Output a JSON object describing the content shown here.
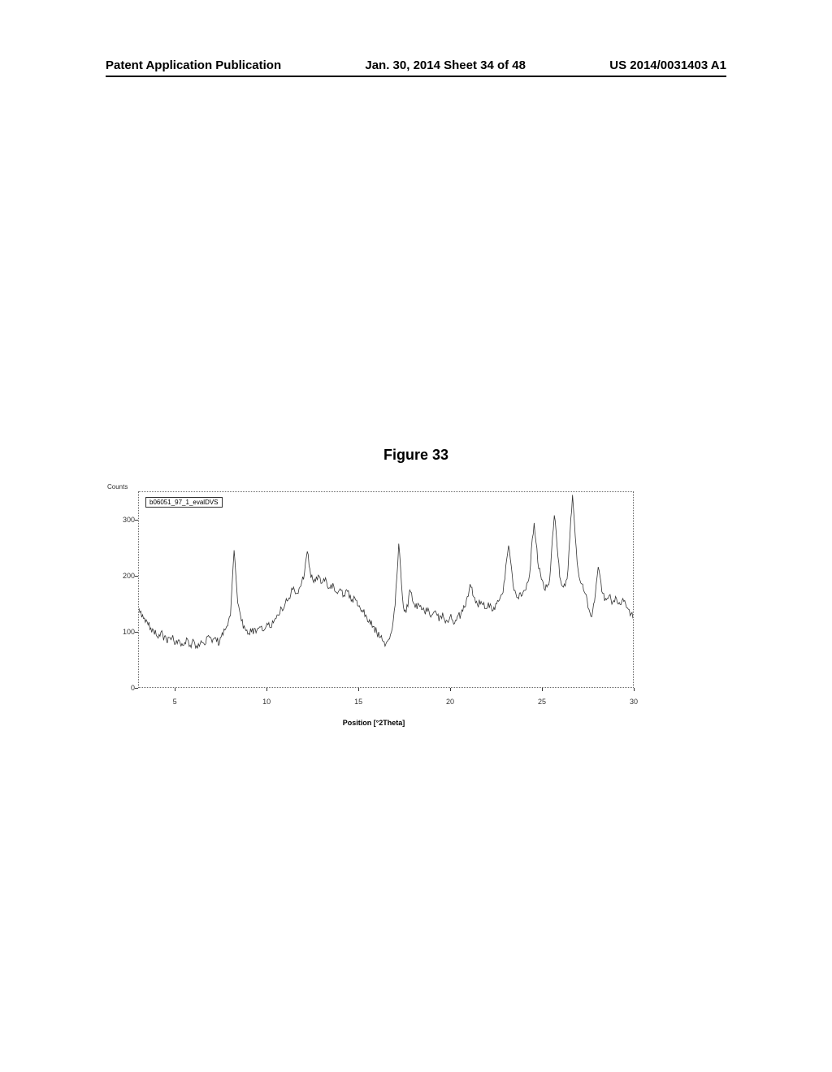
{
  "header": {
    "left": "Patent Application Publication",
    "center": "Jan. 30, 2014  Sheet 34 of 48",
    "right": "US 2014/0031403 A1"
  },
  "figure": {
    "title": "Figure 33",
    "legend": "b06051_97_1_evalDVS",
    "type": "line",
    "ylabel": "Counts",
    "xlabel": "Position [°2Theta]",
    "ylim": [
      0,
      350
    ],
    "xlim": [
      3,
      30
    ],
    "yticks": [
      0,
      100,
      200,
      300
    ],
    "xticks": [
      5,
      10,
      15,
      20,
      25,
      30
    ],
    "trace_color": "#333333",
    "line_width": 0.8,
    "background_color": "#ffffff",
    "border_style": "dotted",
    "data": [
      [
        3.0,
        140
      ],
      [
        3.2,
        128
      ],
      [
        3.5,
        112
      ],
      [
        3.8,
        100
      ],
      [
        4.0,
        92
      ],
      [
        4.2,
        98
      ],
      [
        4.5,
        84
      ],
      [
        4.8,
        90
      ],
      [
        5.0,
        78
      ],
      [
        5.2,
        85
      ],
      [
        5.4,
        74
      ],
      [
        5.6,
        88
      ],
      [
        5.8,
        76
      ],
      [
        6.0,
        82
      ],
      [
        6.2,
        70
      ],
      [
        6.4,
        84
      ],
      [
        6.6,
        76
      ],
      [
        6.8,
        92
      ],
      [
        7.0,
        80
      ],
      [
        7.2,
        88
      ],
      [
        7.4,
        78
      ],
      [
        7.6,
        95
      ],
      [
        7.8,
        108
      ],
      [
        8.0,
        130
      ],
      [
        8.1,
        190
      ],
      [
        8.2,
        245
      ],
      [
        8.3,
        200
      ],
      [
        8.4,
        150
      ],
      [
        8.6,
        118
      ],
      [
        8.8,
        105
      ],
      [
        9.0,
        98
      ],
      [
        9.2,
        104
      ],
      [
        9.4,
        96
      ],
      [
        9.6,
        110
      ],
      [
        9.8,
        102
      ],
      [
        10.0,
        115
      ],
      [
        10.2,
        108
      ],
      [
        10.4,
        120
      ],
      [
        10.6,
        128
      ],
      [
        10.8,
        140
      ],
      [
        11.0,
        150
      ],
      [
        11.2,
        162
      ],
      [
        11.4,
        175
      ],
      [
        11.6,
        168
      ],
      [
        11.8,
        180
      ],
      [
        12.0,
        195
      ],
      [
        12.1,
        225
      ],
      [
        12.2,
        245
      ],
      [
        12.3,
        218
      ],
      [
        12.4,
        198
      ],
      [
        12.6,
        192
      ],
      [
        12.8,
        200
      ],
      [
        13.0,
        188
      ],
      [
        13.2,
        195
      ],
      [
        13.4,
        178
      ],
      [
        13.6,
        185
      ],
      [
        13.8,
        172
      ],
      [
        14.0,
        178
      ],
      [
        14.2,
        165
      ],
      [
        14.4,
        170
      ],
      [
        14.6,
        155
      ],
      [
        14.8,
        160
      ],
      [
        15.0,
        145
      ],
      [
        15.2,
        140
      ],
      [
        15.4,
        128
      ],
      [
        15.6,
        120
      ],
      [
        15.8,
        110
      ],
      [
        16.0,
        98
      ],
      [
        16.2,
        88
      ],
      [
        16.4,
        82
      ],
      [
        16.5,
        78
      ],
      [
        16.6,
        85
      ],
      [
        16.8,
        100
      ],
      [
        17.0,
        145
      ],
      [
        17.1,
        200
      ],
      [
        17.2,
        256
      ],
      [
        17.3,
        215
      ],
      [
        17.4,
        165
      ],
      [
        17.5,
        135
      ],
      [
        17.7,
        145
      ],
      [
        17.8,
        175
      ],
      [
        17.9,
        168
      ],
      [
        18.0,
        150
      ],
      [
        18.2,
        142
      ],
      [
        18.4,
        148
      ],
      [
        18.6,
        135
      ],
      [
        18.8,
        142
      ],
      [
        19.0,
        128
      ],
      [
        19.2,
        138
      ],
      [
        19.4,
        120
      ],
      [
        19.6,
        132
      ],
      [
        19.8,
        118
      ],
      [
        20.0,
        128
      ],
      [
        20.2,
        115
      ],
      [
        20.4,
        125
      ],
      [
        20.6,
        130
      ],
      [
        20.8,
        145
      ],
      [
        21.0,
        165
      ],
      [
        21.1,
        185
      ],
      [
        21.2,
        178
      ],
      [
        21.3,
        160
      ],
      [
        21.5,
        148
      ],
      [
        21.7,
        155
      ],
      [
        21.9,
        142
      ],
      [
        22.1,
        150
      ],
      [
        22.3,
        138
      ],
      [
        22.5,
        148
      ],
      [
        22.7,
        155
      ],
      [
        22.9,
        170
      ],
      [
        23.0,
        195
      ],
      [
        23.1,
        230
      ],
      [
        23.2,
        255
      ],
      [
        23.3,
        232
      ],
      [
        23.4,
        200
      ],
      [
        23.5,
        175
      ],
      [
        23.7,
        160
      ],
      [
        23.9,
        165
      ],
      [
        24.1,
        172
      ],
      [
        24.3,
        190
      ],
      [
        24.4,
        220
      ],
      [
        24.5,
        265
      ],
      [
        24.6,
        295
      ],
      [
        24.7,
        262
      ],
      [
        24.8,
        225
      ],
      [
        25.0,
        195
      ],
      [
        25.2,
        175
      ],
      [
        25.4,
        185
      ],
      [
        25.5,
        215
      ],
      [
        25.6,
        268
      ],
      [
        25.7,
        310
      ],
      [
        25.8,
        280
      ],
      [
        25.9,
        235
      ],
      [
        26.0,
        198
      ],
      [
        26.2,
        180
      ],
      [
        26.4,
        195
      ],
      [
        26.5,
        240
      ],
      [
        26.6,
        300
      ],
      [
        26.7,
        345
      ],
      [
        26.8,
        298
      ],
      [
        26.9,
        248
      ],
      [
        27.0,
        210
      ],
      [
        27.2,
        185
      ],
      [
        27.4,
        168
      ],
      [
        27.5,
        155
      ],
      [
        27.6,
        140
      ],
      [
        27.7,
        128
      ],
      [
        27.8,
        135
      ],
      [
        27.9,
        155
      ],
      [
        28.0,
        188
      ],
      [
        28.1,
        215
      ],
      [
        28.2,
        198
      ],
      [
        28.3,
        172
      ],
      [
        28.5,
        158
      ],
      [
        28.7,
        165
      ],
      [
        28.9,
        152
      ],
      [
        29.1,
        160
      ],
      [
        29.3,
        148
      ],
      [
        29.5,
        155
      ],
      [
        29.7,
        140
      ],
      [
        29.9,
        130
      ],
      [
        30.0,
        125
      ]
    ]
  }
}
